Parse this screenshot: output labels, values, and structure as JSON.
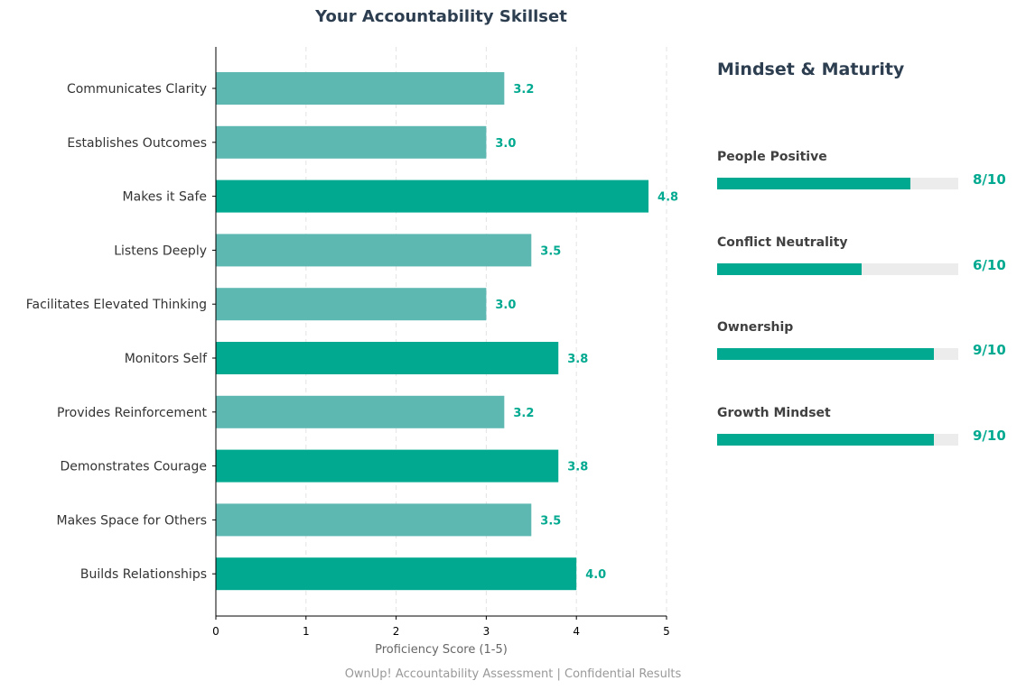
{
  "chart_data": {
    "type": "bar",
    "orientation": "horizontal",
    "title": "Your Accountability Skillset",
    "xlabel": "Proficiency Score (1-5)",
    "ylabel": "",
    "xlim": [
      0,
      5
    ],
    "xticks": [
      "0",
      "1",
      "2",
      "3",
      "4",
      "5"
    ],
    "grid": "vertical dashed",
    "categories": [
      "Communicates Clarity",
      "Establishes Outcomes",
      "Makes it Safe",
      "Listens Deeply",
      "Facilitates Elevated Thinking",
      "Monitors Self",
      "Provides Reinforcement",
      "Demonstrates Courage",
      "Makes Space for Others",
      "Builds Relationships"
    ],
    "values": [
      3.2,
      3.0,
      4.8,
      3.5,
      3.0,
      3.8,
      3.2,
      3.8,
      3.5,
      4.0
    ],
    "data_labels": [
      "3.2",
      "3.0",
      "4.8",
      "3.5",
      "3.0",
      "3.8",
      "3.2",
      "3.8",
      "3.5",
      "4.0"
    ],
    "bar_colors": [
      "#5eb8b2",
      "#5eb8b2",
      "#00a98f",
      "#5eb8b2",
      "#5eb8b2",
      "#00a98f",
      "#5eb8b2",
      "#00a98f",
      "#5eb8b2",
      "#00a98f"
    ],
    "label_color": "#00a98f"
  },
  "panel": {
    "title": "Mindset & Maturity",
    "items": [
      {
        "label": "People Positive",
        "score": 8,
        "max": 10,
        "text": "8/10"
      },
      {
        "label": "Conflict Neutrality",
        "score": 6,
        "max": 10,
        "text": "6/10"
      },
      {
        "label": "Ownership",
        "score": 9,
        "max": 10,
        "text": "9/10"
      },
      {
        "label": "Growth Mindset",
        "score": 9,
        "max": 10,
        "text": "9/10"
      }
    ],
    "fill_color": "#00a98f",
    "track_color": "#ececec"
  },
  "footer": "OwnUp! Accountability Assessment | Confidential Results"
}
